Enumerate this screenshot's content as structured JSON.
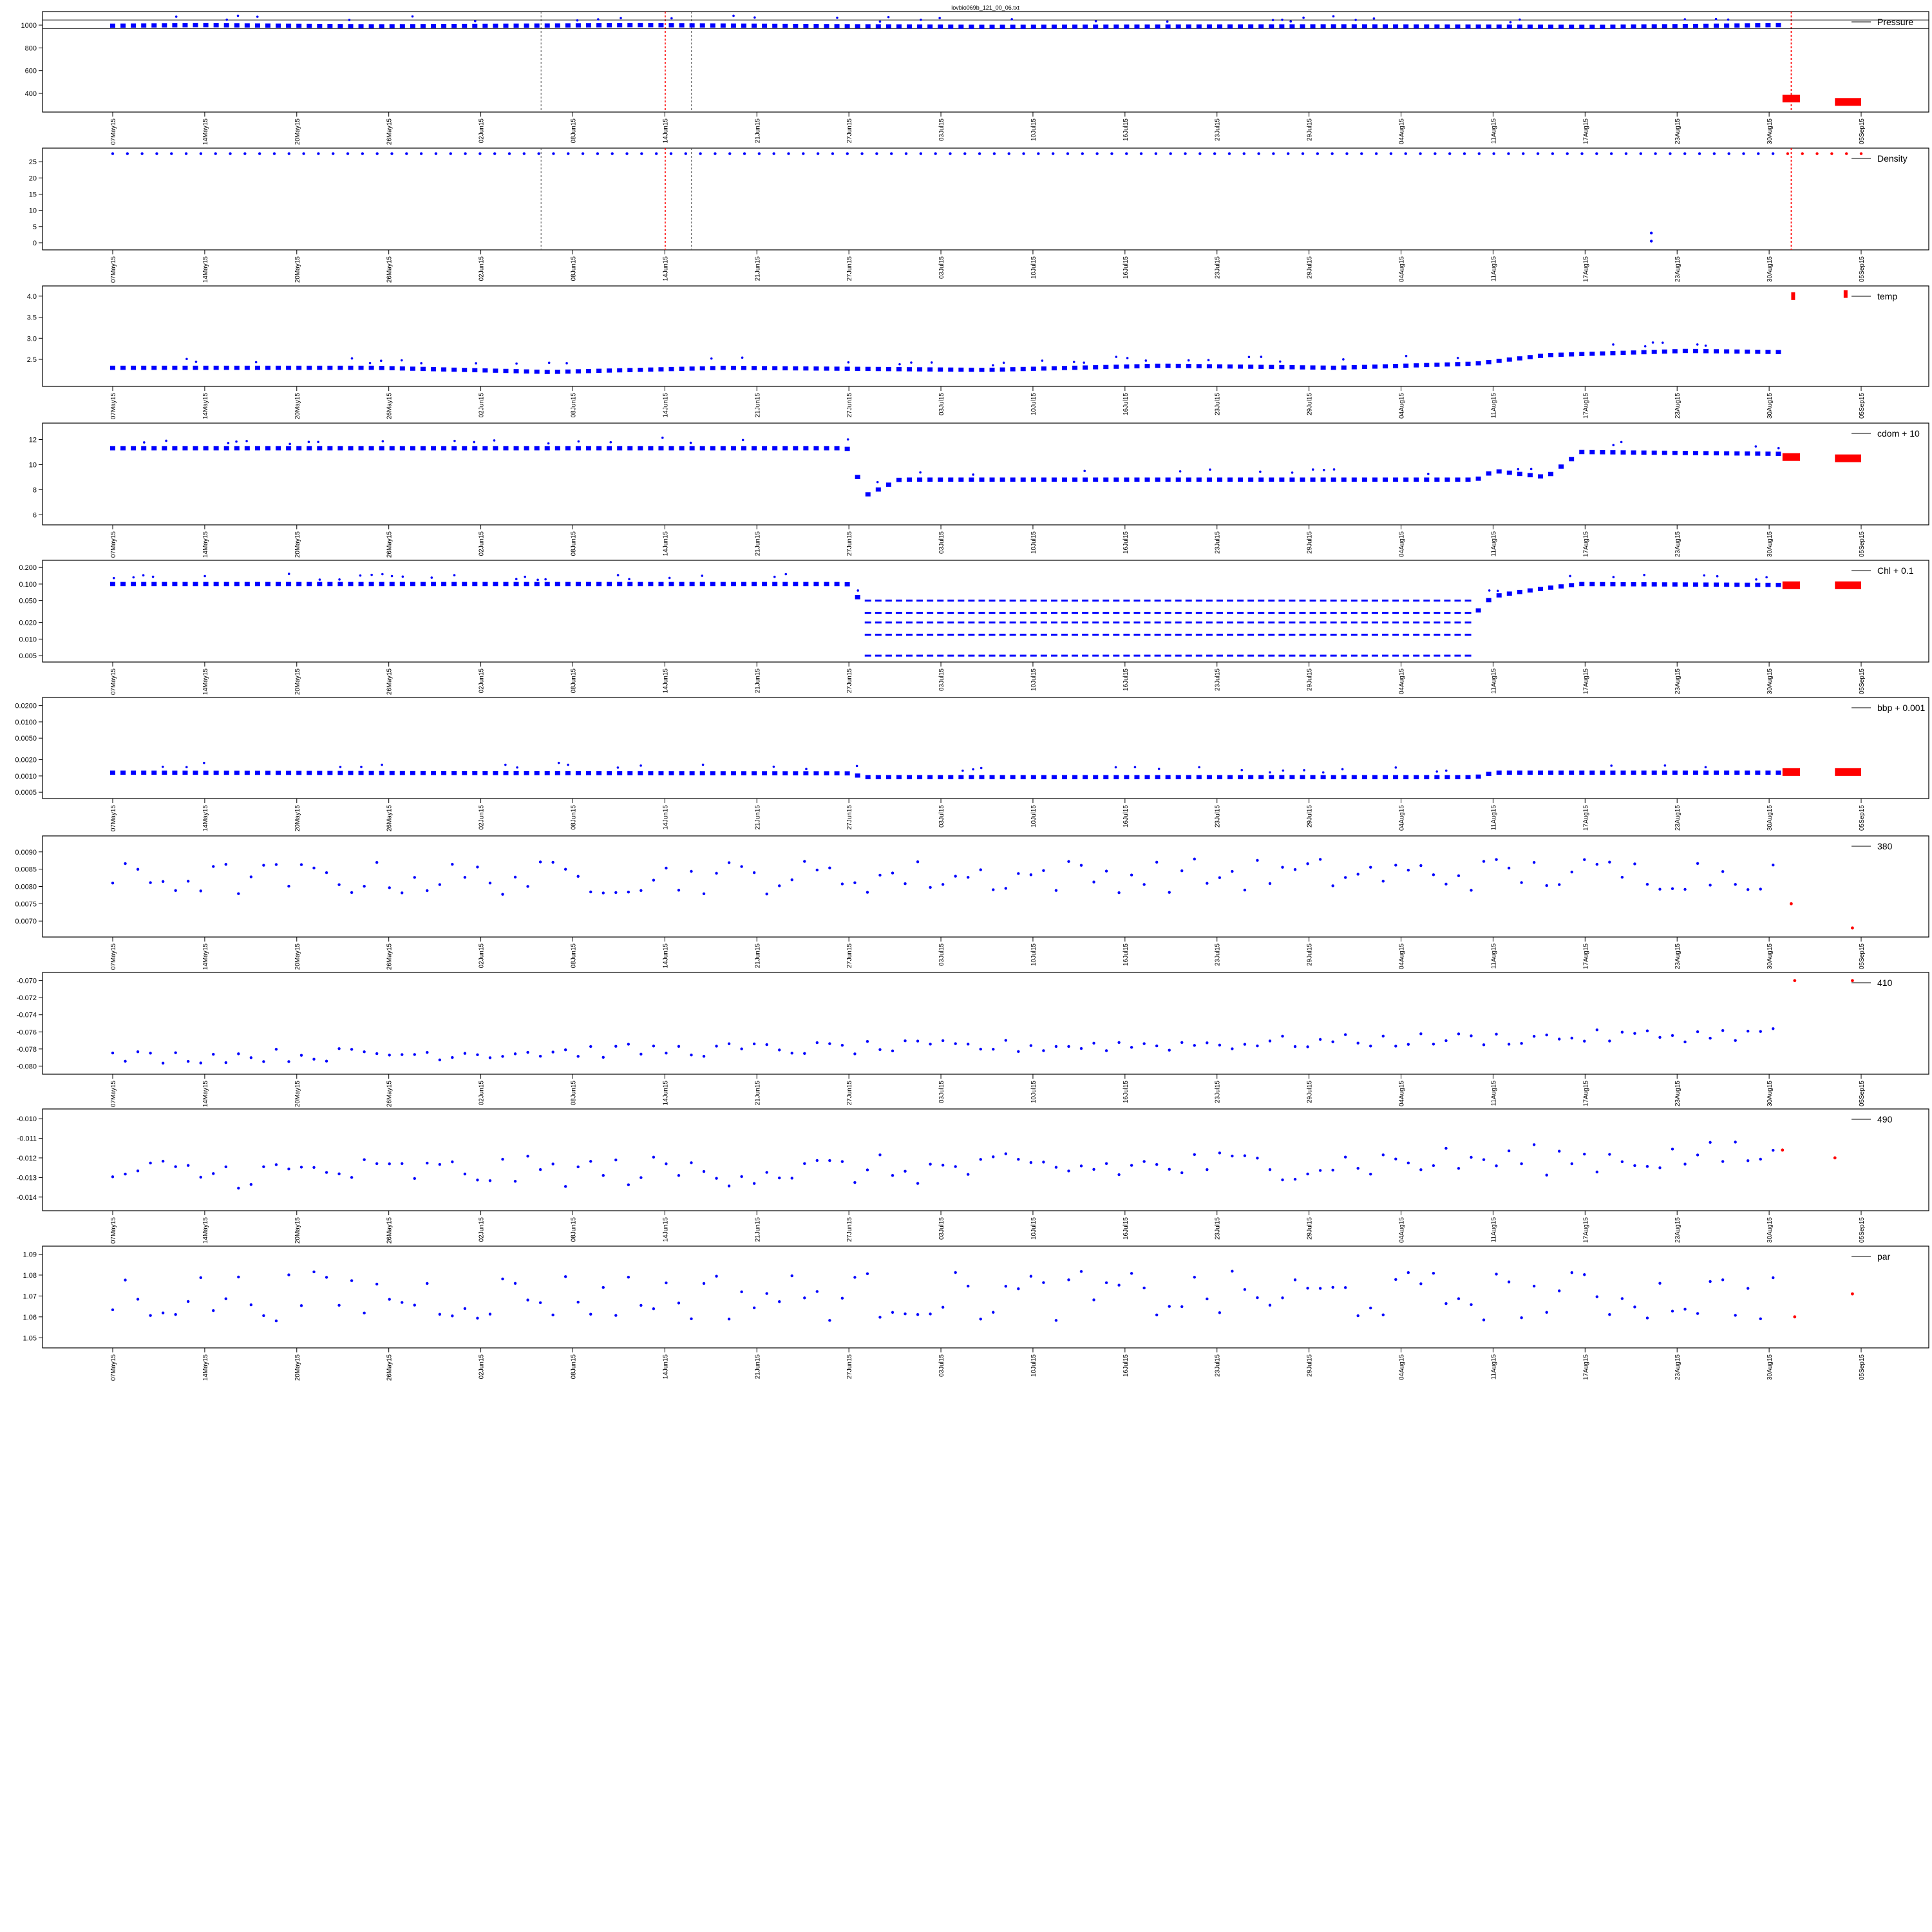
{
  "title": "lovbio069b_121_00_06.txt",
  "date_ticks": [
    "07May15",
    "14May15",
    "20May15",
    "26May15",
    "02Jun15",
    "08Jun15",
    "14Jun15",
    "21Jun15",
    "27Jun15",
    "03Jul15",
    "10Jul15",
    "16Jul15",
    "23Jul15",
    "29Jul15",
    "04Aug15",
    "11Aug15",
    "17Aug15",
    "23Aug15",
    "30Aug15",
    "05Sep15"
  ],
  "colors": {
    "good": "#0000ff",
    "flagged": "#ff0000",
    "axis": "#000000",
    "vline": "#555555",
    "vline_red": "#ff0000"
  },
  "chart_data": [
    {
      "type": "scatter",
      "series_label": "Pressure",
      "yticks": [
        "1000",
        "800",
        "600",
        "400"
      ],
      "ylim": [
        270,
        1085
      ],
      "x_range": [
        "2015-05-07",
        "2015-09-05"
      ],
      "pattern": "profile_clusters",
      "baseline": [
        [
          0,
          995
        ],
        [
          0.05,
          1000
        ],
        [
          0.15,
          990
        ],
        [
          0.3,
          1000
        ],
        [
          0.5,
          985
        ],
        [
          0.7,
          990
        ],
        [
          0.85,
          985
        ],
        [
          0.95,
          1000
        ]
      ],
      "flagged_segments": [
        [
          0.955,
          0.965,
          355
        ],
        [
          0.985,
          1.0,
          325
        ]
      ],
      "vertical_lines_x": [
        0.245,
        0.316,
        0.331,
        0.96
      ],
      "bands_y": [
        970,
        1045
      ]
    },
    {
      "type": "scatter",
      "series_label": "Density",
      "yticks": [
        "25",
        "20",
        "15",
        "10",
        "5",
        "0"
      ],
      "ylim": [
        -1,
        28
      ],
      "x_range": [
        "2015-05-07",
        "2015-09-05"
      ],
      "pattern": "daily_points",
      "baseline": [
        [
          0,
          27.5
        ],
        [
          1,
          27.5
        ]
      ],
      "outliers": [
        [
          0.88,
          3
        ],
        [
          0.88,
          0.5
        ]
      ],
      "vertical_lines_x": [
        0.245,
        0.316,
        0.331,
        0.96
      ]
    },
    {
      "type": "scatter",
      "series_label": "temp",
      "yticks": [
        "4.0",
        "3.5",
        "3.0",
        "2.5"
      ],
      "ylim": [
        1.95,
        4.15
      ],
      "x_range": [
        "2015-05-07",
        "2015-09-05"
      ],
      "pattern": "profile_clusters",
      "baseline": [
        [
          0,
          2.3
        ],
        [
          0.15,
          2.3
        ],
        [
          0.25,
          2.2
        ],
        [
          0.35,
          2.3
        ],
        [
          0.5,
          2.25
        ],
        [
          0.6,
          2.35
        ],
        [
          0.7,
          2.3
        ],
        [
          0.78,
          2.4
        ],
        [
          0.82,
          2.6
        ],
        [
          0.9,
          2.7
        ],
        [
          1,
          2.65
        ]
      ],
      "flagged_segments": [
        [
          0.96,
          0.962,
          4.0
        ],
        [
          0.99,
          0.992,
          4.05
        ]
      ]
    },
    {
      "type": "scatter",
      "series_label": "cdom + 10",
      "yticks": [
        "12",
        "10",
        "8",
        "6"
      ],
      "ylim": [
        5.5,
        13
      ],
      "x_range": [
        "2015-05-07",
        "2015-09-05"
      ],
      "pattern": "profile_clusters",
      "baseline": [
        [
          0,
          11.3
        ],
        [
          0.42,
          11.3
        ],
        [
          0.43,
          7.5
        ],
        [
          0.45,
          8.8
        ],
        [
          0.78,
          8.8
        ],
        [
          0.79,
          9.5
        ],
        [
          0.82,
          9.0
        ],
        [
          0.84,
          11.0
        ],
        [
          1,
          10.8
        ]
      ],
      "flagged_segments": [
        [
          0.955,
          0.965,
          10.6
        ],
        [
          0.985,
          1.0,
          10.5
        ]
      ]
    },
    {
      "type": "scatter",
      "series_label": "Chl + 0.1",
      "yticks": [
        "0.200",
        "0.100",
        "0.050",
        "0.020",
        "0.010",
        "0.005"
      ],
      "ylim": [
        0.0045,
        0.23
      ],
      "log_scale": true,
      "x_range": [
        "2015-05-07",
        "2015-09-05"
      ],
      "pattern": "profile_clusters",
      "baseline": [
        [
          0,
          0.1
        ],
        [
          0.42,
          0.1
        ],
        [
          0.43,
          0.03
        ],
        [
          0.78,
          0.03
        ],
        [
          0.79,
          0.06
        ],
        [
          0.84,
          0.1
        ],
        [
          1,
          0.095
        ]
      ],
      "flagged_segments": [
        [
          0.955,
          0.965,
          0.095
        ],
        [
          0.985,
          1.0,
          0.095
        ]
      ]
    },
    {
      "type": "scatter",
      "series_label": "bbp + 0.001",
      "yticks": [
        "0.0200",
        "0.0100",
        "0.0050",
        "0.0020",
        "0.0010",
        "0.0005"
      ],
      "ylim": [
        0.00045,
        0.024
      ],
      "log_scale": true,
      "x_range": [
        "2015-05-07",
        "2015-09-05"
      ],
      "pattern": "profile_clusters",
      "baseline": [
        [
          0,
          0.00115
        ],
        [
          0.42,
          0.00112
        ],
        [
          0.43,
          0.00095
        ],
        [
          0.78,
          0.00095
        ],
        [
          0.79,
          0.00115
        ],
        [
          1,
          0.00115
        ]
      ],
      "flagged_segments": [
        [
          0.955,
          0.965,
          0.00118
        ],
        [
          0.985,
          1.0,
          0.00118
        ]
      ]
    },
    {
      "type": "scatter",
      "series_label": "380",
      "yticks": [
        "0.0090",
        "0.0085",
        "0.0080",
        "0.0075",
        "0.0070"
      ],
      "ylim": [
        0.00665,
        0.00935
      ],
      "x_range": [
        "2015-05-07",
        "2015-09-05"
      ],
      "pattern": "sparse_points",
      "baseline": [
        [
          0,
          0.0082
        ],
        [
          1,
          0.0084
        ]
      ],
      "spread": 0.0005,
      "flagged_points": [
        [
          0.96,
          0.0075
        ],
        [
          0.995,
          0.0068
        ]
      ]
    },
    {
      "type": "scatter",
      "series_label": "410",
      "yticks": [
        "-0.070",
        "-0.072",
        "-0.074",
        "-0.076",
        "-0.078",
        "-0.080"
      ],
      "ylim": [
        -0.0805,
        -0.0695
      ],
      "x_range": [
        "2015-05-07",
        "2015-09-05"
      ],
      "pattern": "sparse_points",
      "baseline": [
        [
          0,
          -0.079
        ],
        [
          0.3,
          -0.0782
        ],
        [
          0.6,
          -0.0775
        ],
        [
          1,
          -0.076
        ]
      ],
      "spread": 0.0008,
      "flagged_points": [
        [
          0.962,
          -0.07
        ],
        [
          0.995,
          -0.07
        ]
      ]
    },
    {
      "type": "scatter",
      "series_label": "490",
      "yticks": [
        "-0.010",
        "-0.011",
        "-0.012",
        "-0.013",
        "-0.014"
      ],
      "ylim": [
        -0.0145,
        -0.0097
      ],
      "x_range": [
        "2015-05-07",
        "2015-09-05"
      ],
      "pattern": "sparse_points",
      "baseline": [
        [
          0,
          -0.0128
        ],
        [
          0.5,
          -0.0126
        ],
        [
          1,
          -0.0118
        ]
      ],
      "spread": 0.0008,
      "flagged_points": [
        [
          0.955,
          -0.0116
        ],
        [
          0.985,
          -0.012
        ]
      ]
    },
    {
      "type": "scatter",
      "series_label": "par",
      "yticks": [
        "1.09",
        "1.08",
        "1.07",
        "1.06",
        "1.05"
      ],
      "ylim": [
        1.047,
        1.092
      ],
      "x_range": [
        "2015-05-07",
        "2015-09-05"
      ],
      "pattern": "sparse_points",
      "baseline": [
        [
          0,
          1.07
        ],
        [
          1,
          1.07
        ]
      ],
      "spread": 0.012,
      "flagged_points": [
        [
          0.962,
          1.06
        ],
        [
          0.995,
          1.071
        ]
      ]
    }
  ]
}
